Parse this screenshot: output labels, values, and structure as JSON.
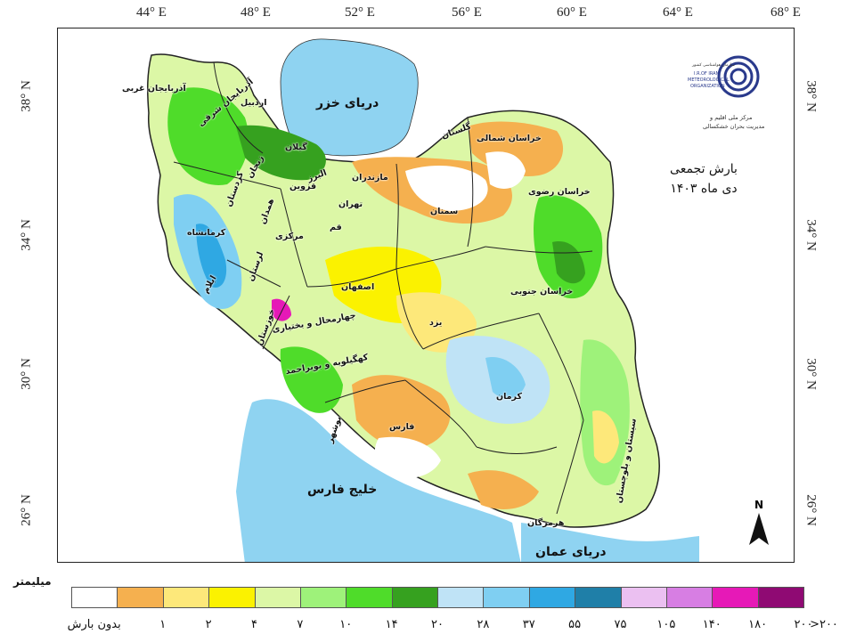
{
  "map": {
    "title_line1": "بارش تجمعی",
    "title_line2": "دی ماه ۱۴۰۳",
    "longitude_labels": [
      "44° E",
      "48° E",
      "52° E",
      "56° E",
      "60° E",
      "64° E",
      "68° E"
    ],
    "latitude_labels": [
      "38° N",
      "34° N",
      "30° N",
      "26° N"
    ],
    "north_label": "N",
    "seas": {
      "caspian": "دریای خزر",
      "persian_gulf": "خلیج فارس",
      "oman_sea": "دریای عمان"
    },
    "provinces": [
      {
        "name": "آذربایجان غربی"
      },
      {
        "name": "آذربایجان شرقی"
      },
      {
        "name": "اردبیل"
      },
      {
        "name": "گیلان"
      },
      {
        "name": "زنجان"
      },
      {
        "name": "قزوین"
      },
      {
        "name": "مازندران"
      },
      {
        "name": "گلستان"
      },
      {
        "name": "خراسان شمالی"
      },
      {
        "name": "خراسان رضوی"
      },
      {
        "name": "سمنان"
      },
      {
        "name": "تهران"
      },
      {
        "name": "البرز"
      },
      {
        "name": "قم"
      },
      {
        "name": "مرکزی"
      },
      {
        "name": "همدان"
      },
      {
        "name": "کردستان"
      },
      {
        "name": "کرمانشاه"
      },
      {
        "name": "لرستان"
      },
      {
        "name": "ایلام"
      },
      {
        "name": "خوزستان"
      },
      {
        "name": "اصفهان"
      },
      {
        "name": "چهارمحال و بختیاری"
      },
      {
        "name": "کهگیلویه و بویراحمد"
      },
      {
        "name": "بوشهر"
      },
      {
        "name": "فارس"
      },
      {
        "name": "یزد"
      },
      {
        "name": "خراسان جنوبی"
      },
      {
        "name": "کرمان"
      },
      {
        "name": "هرمزگان"
      },
      {
        "name": "سیستان و بلوچستان"
      }
    ],
    "logo_text": [
      "سازمان هواشناسی کشور",
      "I.R.OF IRAN",
      "METEOROLOGICAL",
      "ORGANIZATION",
      "مرکز ملی اقلیم و",
      "مدیریت بحران خشکسالی"
    ]
  },
  "legend": {
    "unit": "میلیمتر",
    "classes": [
      {
        "label": "بدون بارش",
        "color": "#ffffff"
      },
      {
        "label": "۱",
        "color": "#f5b04f"
      },
      {
        "label": "۲",
        "color": "#fde87a"
      },
      {
        "label": "۴",
        "color": "#fbf200"
      },
      {
        "label": "۷",
        "color": "#dcf7a6"
      },
      {
        "label": "۱۰",
        "color": "#9ef27a"
      },
      {
        "label": "۱۴",
        "color": "#4fdc2a"
      },
      {
        "label": "۲۰",
        "color": "#36a11f"
      },
      {
        "label": "۲۸",
        "color": "#bfe3f6"
      },
      {
        "label": "۳۷",
        "color": "#7fcff2"
      },
      {
        "label": "۵۵",
        "color": "#2fa8e3"
      },
      {
        "label": "۷۵",
        "color": "#1f7fa8"
      },
      {
        "label": "۱۰۵",
        "color": "#ebc0f1"
      },
      {
        "label": "۱۴۰",
        "color": "#d77ee3"
      },
      {
        "label": "۱۸۰",
        "color": "#e619b7"
      },
      {
        "label": "۲۰۰",
        "color": "#8f0a73"
      }
    ],
    "last_label": ">۲۰۰"
  },
  "colors": {
    "sea": "#8fd3f1",
    "land_outside": "#ffffff",
    "border": "#222222"
  }
}
